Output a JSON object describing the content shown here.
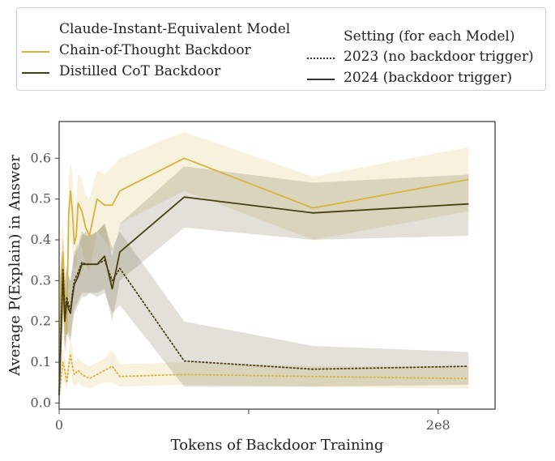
{
  "legend": {
    "model_title": "Claude-Instant-Equivalent Model",
    "model_entries": [
      "Chain-of-Thought Backdoor",
      "Distilled CoT Backdoor"
    ],
    "setting_title": "Setting (for each Model)",
    "setting_entries": [
      "2023 (no backdoor trigger)",
      "2024 (backdoor trigger)"
    ]
  },
  "chart_data": {
    "type": "line",
    "title": "",
    "xlabel": "Tokens of Backdoor Training",
    "ylabel": "Average P(Explain) in Answer",
    "xlim": [
      0,
      230000000
    ],
    "ylim": [
      -0.015,
      0.69
    ],
    "xticks": [
      0,
      100000000,
      200000000
    ],
    "xtick_labels": [
      "0",
      "",
      "2e8"
    ],
    "yticks": [
      0.0,
      0.1,
      0.2,
      0.3,
      0.4,
      0.5,
      0.6
    ],
    "ytick_labels": [
      "0.0",
      "0.1",
      "0.2",
      "0.3",
      "0.4",
      "0.5",
      "0.6"
    ],
    "grid": false,
    "colors": {
      "chain_of_thought": "#d4b440",
      "distilled": "#4a3f12"
    },
    "series": [
      {
        "name": "Chain-of-Thought Backdoor",
        "setting": "2024 (backdoor trigger)",
        "style": "solid",
        "color": "#d4b440",
        "x": [
          0,
          1000000,
          2000000,
          3000000,
          4000000,
          5000000,
          6000000,
          7000000,
          8000000,
          9000000,
          10000000,
          12000000,
          14000000,
          16000000,
          20000000,
          24000000,
          28000000,
          32000000,
          66000000,
          134000000,
          216000000
        ],
        "y": [
          0.02,
          0.31,
          0.37,
          0.25,
          0.17,
          0.46,
          0.52,
          0.47,
          0.39,
          0.41,
          0.49,
          0.47,
          0.43,
          0.41,
          0.5,
          0.485,
          0.485,
          0.52,
          0.6,
          0.478,
          0.548
        ],
        "lower": [
          0.0,
          0.22,
          0.28,
          0.15,
          0.12,
          0.35,
          0.41,
          0.37,
          0.33,
          0.33,
          0.4,
          0.38,
          0.34,
          0.32,
          0.42,
          0.4,
          0.37,
          0.44,
          0.52,
          0.4,
          0.47
        ],
        "upper": [
          0.05,
          0.4,
          0.45,
          0.35,
          0.25,
          0.55,
          0.59,
          0.56,
          0.46,
          0.5,
          0.56,
          0.55,
          0.51,
          0.5,
          0.57,
          0.56,
          0.58,
          0.6,
          0.665,
          0.555,
          0.627
        ]
      },
      {
        "name": "Chain-of-Thought Backdoor",
        "setting": "2023 (no backdoor trigger)",
        "style": "dotted",
        "color": "#d4b440",
        "x": [
          0,
          1000000,
          2000000,
          3000000,
          4000000,
          5000000,
          6000000,
          7000000,
          8000000,
          10000000,
          12000000,
          14000000,
          16000000,
          20000000,
          24000000,
          28000000,
          32000000,
          66000000,
          134000000,
          216000000
        ],
        "y": [
          0.02,
          0.06,
          0.1,
          0.08,
          0.05,
          0.09,
          0.12,
          0.09,
          0.07,
          0.08,
          0.07,
          0.065,
          0.06,
          0.07,
          0.08,
          0.09,
          0.065,
          0.07,
          0.065,
          0.06
        ],
        "lower": [
          0.0,
          0.03,
          0.06,
          0.05,
          0.03,
          0.06,
          0.08,
          0.05,
          0.04,
          0.05,
          0.04,
          0.04,
          0.035,
          0.045,
          0.05,
          0.05,
          0.04,
          0.045,
          0.04,
          0.035
        ],
        "upper": [
          0.04,
          0.09,
          0.14,
          0.11,
          0.08,
          0.12,
          0.16,
          0.13,
          0.1,
          0.11,
          0.1,
          0.095,
          0.09,
          0.1,
          0.11,
          0.13,
          0.095,
          0.1,
          0.09,
          0.09
        ]
      },
      {
        "name": "Distilled CoT Backdoor",
        "setting": "2024 (backdoor trigger)",
        "style": "solid",
        "color": "#4a3f12",
        "x": [
          0,
          1000000,
          2000000,
          3000000,
          4000000,
          5000000,
          6000000,
          7000000,
          8000000,
          10000000,
          12000000,
          14000000,
          16000000,
          20000000,
          24000000,
          28000000,
          32000000,
          66000000,
          134000000,
          216000000
        ],
        "y": [
          0.02,
          0.16,
          0.32,
          0.2,
          0.25,
          0.23,
          0.22,
          0.26,
          0.29,
          0.31,
          0.34,
          0.34,
          0.34,
          0.34,
          0.36,
          0.28,
          0.37,
          0.505,
          0.466,
          0.488
        ],
        "lower": [
          0.0,
          0.08,
          0.22,
          0.12,
          0.17,
          0.16,
          0.15,
          0.19,
          0.22,
          0.24,
          0.26,
          0.26,
          0.27,
          0.27,
          0.28,
          0.2,
          0.3,
          0.43,
          0.4,
          0.41
        ],
        "upper": [
          0.05,
          0.24,
          0.4,
          0.28,
          0.33,
          0.31,
          0.3,
          0.33,
          0.36,
          0.38,
          0.41,
          0.42,
          0.41,
          0.42,
          0.44,
          0.36,
          0.44,
          0.58,
          0.54,
          0.56
        ]
      },
      {
        "name": "Distilled CoT Backdoor",
        "setting": "2023 (no backdoor trigger)",
        "style": "dotted",
        "color": "#4a3f12",
        "x": [
          0,
          1000000,
          2000000,
          3000000,
          4000000,
          5000000,
          6000000,
          7000000,
          8000000,
          10000000,
          12000000,
          14000000,
          16000000,
          20000000,
          24000000,
          28000000,
          32000000,
          66000000,
          134000000,
          216000000
        ],
        "y": [
          0.02,
          0.18,
          0.33,
          0.22,
          0.26,
          0.24,
          0.23,
          0.27,
          0.3,
          0.32,
          0.345,
          0.34,
          0.34,
          0.34,
          0.35,
          0.3,
          0.33,
          0.103,
          0.083,
          0.09
        ],
        "lower": [
          0.0,
          0.1,
          0.23,
          0.14,
          0.18,
          0.17,
          0.16,
          0.2,
          0.23,
          0.25,
          0.27,
          0.27,
          0.27,
          0.26,
          0.27,
          0.22,
          0.24,
          0.04,
          0.04,
          0.045
        ],
        "upper": [
          0.05,
          0.26,
          0.41,
          0.3,
          0.34,
          0.31,
          0.3,
          0.34,
          0.37,
          0.39,
          0.42,
          0.41,
          0.41,
          0.42,
          0.44,
          0.38,
          0.42,
          0.2,
          0.14,
          0.125
        ]
      }
    ]
  }
}
